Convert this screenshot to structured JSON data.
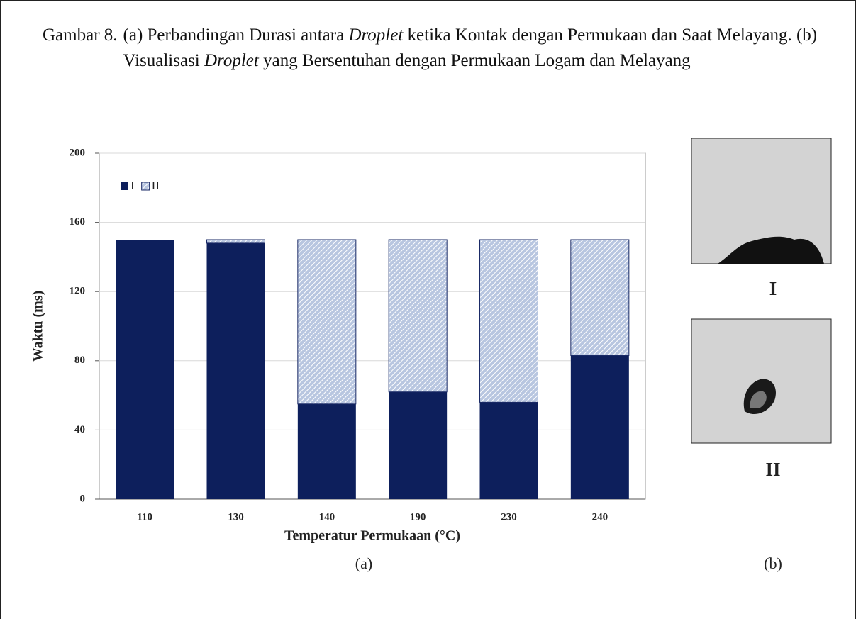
{
  "caption": {
    "label": "Gambar 8.",
    "parts": [
      "(a) Perbandingan Durasi antara ",
      "Droplet",
      " ketika Kontak dengan Permukaan dan Saat Melayang. (b) Visualisasi ",
      "Droplet",
      " yang Bersentuhan dengan Permukaan Logam dan Melayang"
    ]
  },
  "chart_data": {
    "type": "bar",
    "stacked": true,
    "categories": [
      "110",
      "130",
      "140",
      "190",
      "230",
      "240"
    ],
    "series": [
      {
        "name": "I",
        "color": "#0d1f5c",
        "pattern": "solid",
        "values": [
          150,
          148,
          55,
          62,
          56,
          83
        ]
      },
      {
        "name": "II",
        "color": "#b8c6e0",
        "pattern": "hatch",
        "values": [
          0,
          2,
          95,
          88,
          94,
          67
        ]
      }
    ],
    "ylim": [
      0,
      200
    ],
    "yticks": [
      0,
      40,
      80,
      120,
      160,
      200
    ],
    "grid": true,
    "x_label": "Temperatur Permukaan (°C)",
    "y_label": "Waktu (ms)",
    "legend": "top-left"
  },
  "panel_b": {
    "images": [
      {
        "label": "I"
      },
      {
        "label": "II"
      }
    ]
  },
  "panel_labels": [
    "(a)",
    "(b)"
  ]
}
